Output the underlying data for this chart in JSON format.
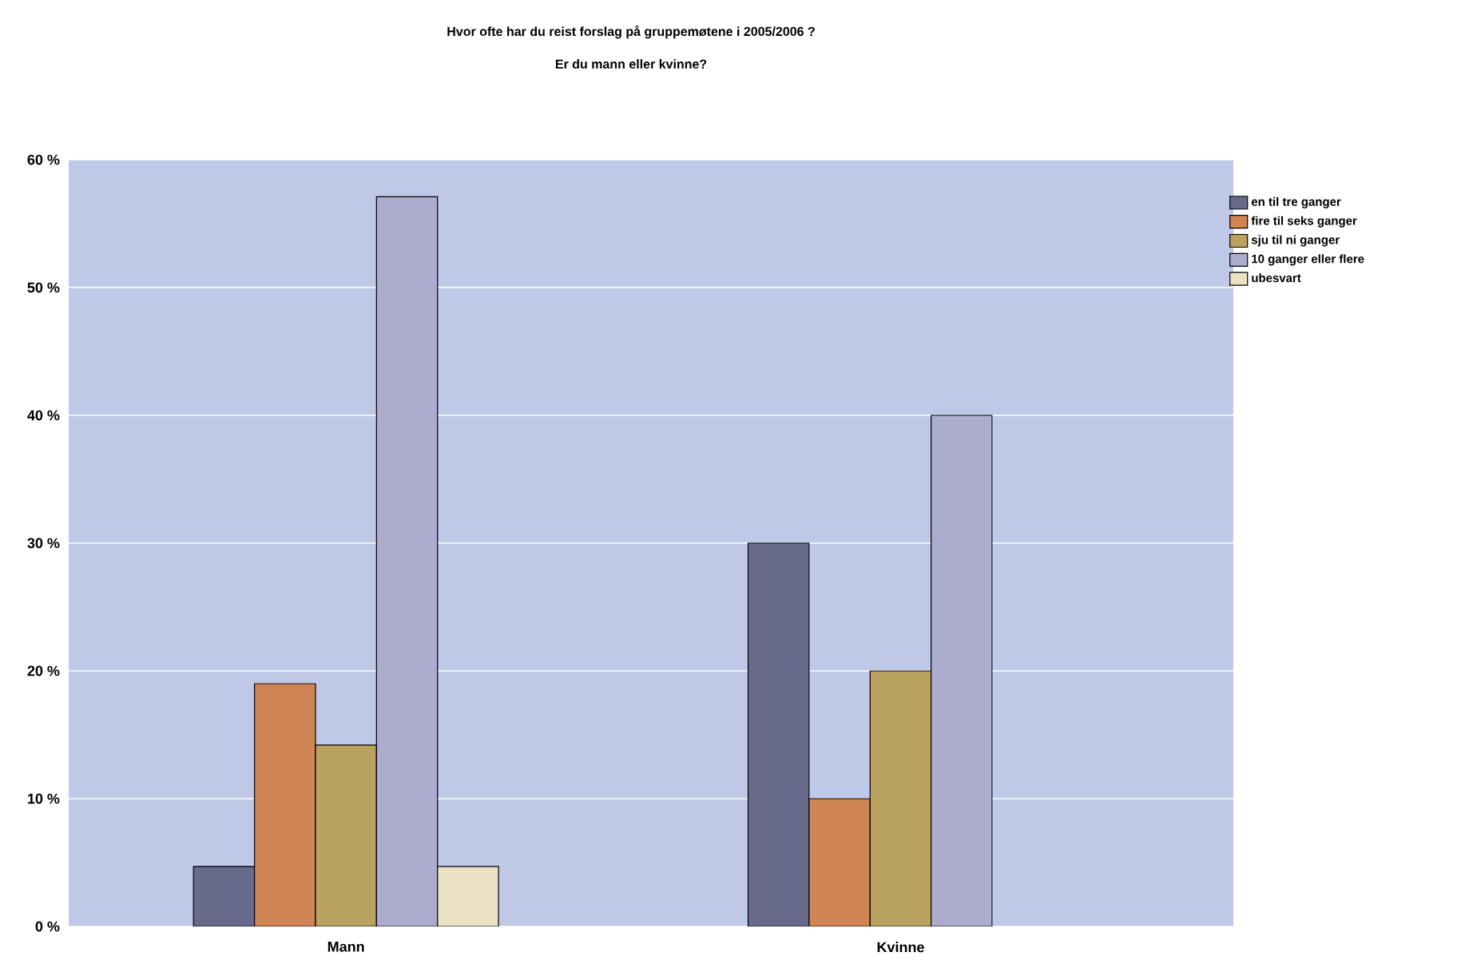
{
  "chart_data": {
    "type": "bar",
    "title": "Hvor ofte har du reist forslag på gruppemøtene i 2005/2006 ?",
    "subtitle": "Er du mann eller kvinne?",
    "categories": [
      "Mann",
      "Kvinne"
    ],
    "series": [
      {
        "name": "en til tre ganger",
        "color": "#686a8c",
        "values": [
          4.7,
          30
        ]
      },
      {
        "name": "fire til seks ganger",
        "color": "#d08555",
        "values": [
          19,
          10
        ]
      },
      {
        "name": "sju til ni ganger",
        "color": "#b9a15f",
        "values": [
          14.2,
          20
        ]
      },
      {
        "name": "10 ganger eller flere",
        "color": "#abacce",
        "values": [
          57.1,
          40
        ]
      },
      {
        "name": "ubesvart",
        "color": "#ebe1c4",
        "values": [
          4.7,
          null
        ]
      }
    ],
    "ylim": [
      0,
      60
    ],
    "yticks": [
      {
        "value": 0,
        "label": "0 %"
      },
      {
        "value": 10,
        "label": "10 %"
      },
      {
        "value": 20,
        "label": "20 %"
      },
      {
        "value": 30,
        "label": "30 %"
      },
      {
        "value": 40,
        "label": "40 %"
      },
      {
        "value": 50,
        "label": "50 %"
      },
      {
        "value": 60,
        "label": "60 %"
      }
    ],
    "grid": "y",
    "legend": "top right"
  }
}
